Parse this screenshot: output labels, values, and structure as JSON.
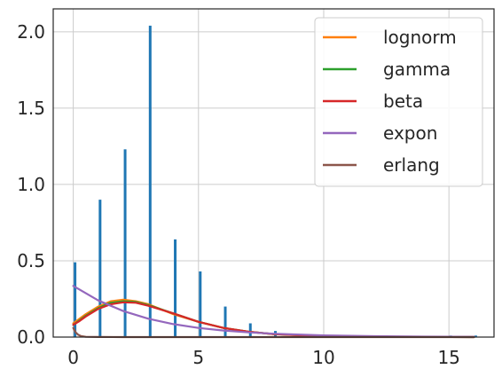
{
  "chart_data": {
    "type": "bar+line",
    "title": "",
    "xlabel": "",
    "ylabel": "",
    "xlim": [
      -0.8,
      16.8
    ],
    "ylim": [
      0,
      2.15
    ],
    "grid": true,
    "legend_position": "top-right",
    "x_ticks": [
      0,
      5,
      10,
      15
    ],
    "y_ticks": [
      0.0,
      0.5,
      1.0,
      1.5,
      2.0
    ],
    "x_tick_labels": [
      "0",
      "5",
      "10",
      "15"
    ],
    "y_tick_labels": [
      "0.0",
      "0.5",
      "1.0",
      "1.5",
      "2.0"
    ],
    "histogram": {
      "color": "#1f77b4",
      "bars": [
        {
          "x": 0,
          "value": 0.49
        },
        {
          "x": 1,
          "value": 0.9
        },
        {
          "x": 2,
          "value": 1.23
        },
        {
          "x": 3,
          "value": 2.04
        },
        {
          "x": 4,
          "value": 0.64
        },
        {
          "x": 5,
          "value": 0.43
        },
        {
          "x": 6,
          "value": 0.2
        },
        {
          "x": 7,
          "value": 0.09
        },
        {
          "x": 8,
          "value": 0.04
        },
        {
          "x": 15,
          "value": 0.01
        },
        {
          "x": 16,
          "value": 0.01
        }
      ]
    },
    "series": [
      {
        "name": "lognorm",
        "color": "#ff7f0e",
        "x": [
          0,
          0.25,
          0.5,
          1,
          1.5,
          2,
          2.5,
          3,
          4,
          5,
          6,
          7,
          8,
          10,
          12,
          14,
          16
        ],
        "y": [
          0.09,
          0.12,
          0.15,
          0.2,
          0.235,
          0.245,
          0.235,
          0.215,
          0.15,
          0.1,
          0.06,
          0.035,
          0.02,
          0.008,
          0.003,
          0.001,
          0.0005
        ]
      },
      {
        "name": "gamma",
        "color": "#2ca02c",
        "x": [
          0,
          0.25,
          0.5,
          1,
          1.5,
          2,
          2.5,
          3,
          4,
          5,
          6,
          7,
          8,
          10,
          12,
          14,
          16
        ],
        "y": [
          0.08,
          0.11,
          0.14,
          0.19,
          0.225,
          0.235,
          0.23,
          0.21,
          0.155,
          0.1,
          0.06,
          0.035,
          0.02,
          0.006,
          0.002,
          0.0005,
          0.0001
        ]
      },
      {
        "name": "beta",
        "color": "#d62728",
        "x": [
          0,
          0.25,
          0.5,
          1,
          1.5,
          2,
          2.5,
          3,
          4,
          5,
          6,
          7,
          8,
          10,
          12,
          14,
          16
        ],
        "y": [
          0.08,
          0.105,
          0.135,
          0.185,
          0.215,
          0.228,
          0.225,
          0.205,
          0.155,
          0.1,
          0.06,
          0.035,
          0.02,
          0.006,
          0.002,
          0.0005,
          0.0001
        ]
      },
      {
        "name": "expon",
        "color": "#9467bd",
        "x": [
          0,
          1,
          2,
          3,
          4,
          5,
          6,
          7,
          8,
          10,
          12,
          14,
          16
        ],
        "y": [
          0.335,
          0.24,
          0.17,
          0.12,
          0.085,
          0.06,
          0.043,
          0.031,
          0.022,
          0.011,
          0.006,
          0.003,
          0.0015
        ]
      },
      {
        "name": "erlang",
        "color": "#8c564b",
        "x": [
          0,
          0.1,
          0.2,
          0.3,
          0.5,
          1,
          2,
          5,
          10,
          16
        ],
        "y": [
          0.06,
          0.03,
          0.015,
          0.007,
          0.002,
          0.0005,
          0,
          0,
          0,
          0
        ]
      }
    ]
  }
}
